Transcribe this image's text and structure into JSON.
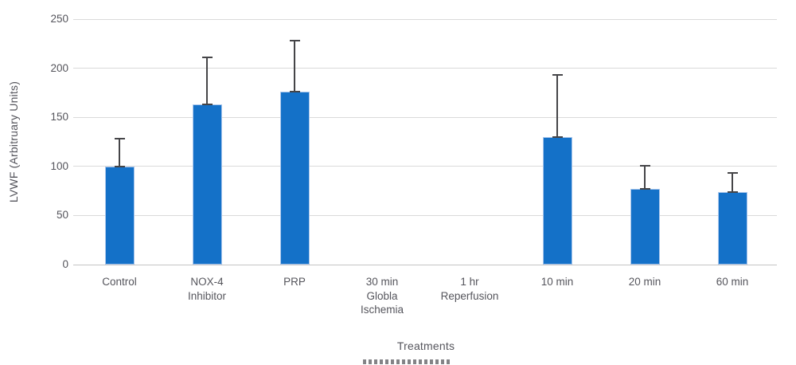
{
  "chart_data": {
    "type": "bar",
    "title": "",
    "xlabel": "Treatments",
    "ylabel": "LVWF (Arbitruary Units)",
    "categories": [
      "Control",
      "NOX-4\nInhibitor",
      "PRP",
      "30 min\nGlobla\nIschemia",
      "1 hr\nReperfusion",
      "10 min",
      "20 min",
      "60 min"
    ],
    "values": [
      100,
      163,
      176,
      0,
      0,
      130,
      77,
      74
    ],
    "error_plus": [
      28,
      48,
      52,
      0,
      0,
      63,
      24,
      19
    ],
    "ylim": [
      0,
      250
    ],
    "yticks": [
      0,
      50,
      100,
      150,
      200,
      250
    ],
    "grid": "horizontal",
    "legend": "none",
    "colors": {
      "bar_fill": "#1471c8",
      "bar_border": "#a9c6ec",
      "error_bar": "#454548",
      "gridline": "#dadada",
      "baseline": "#c4c4c4",
      "text": "#55555c"
    }
  }
}
